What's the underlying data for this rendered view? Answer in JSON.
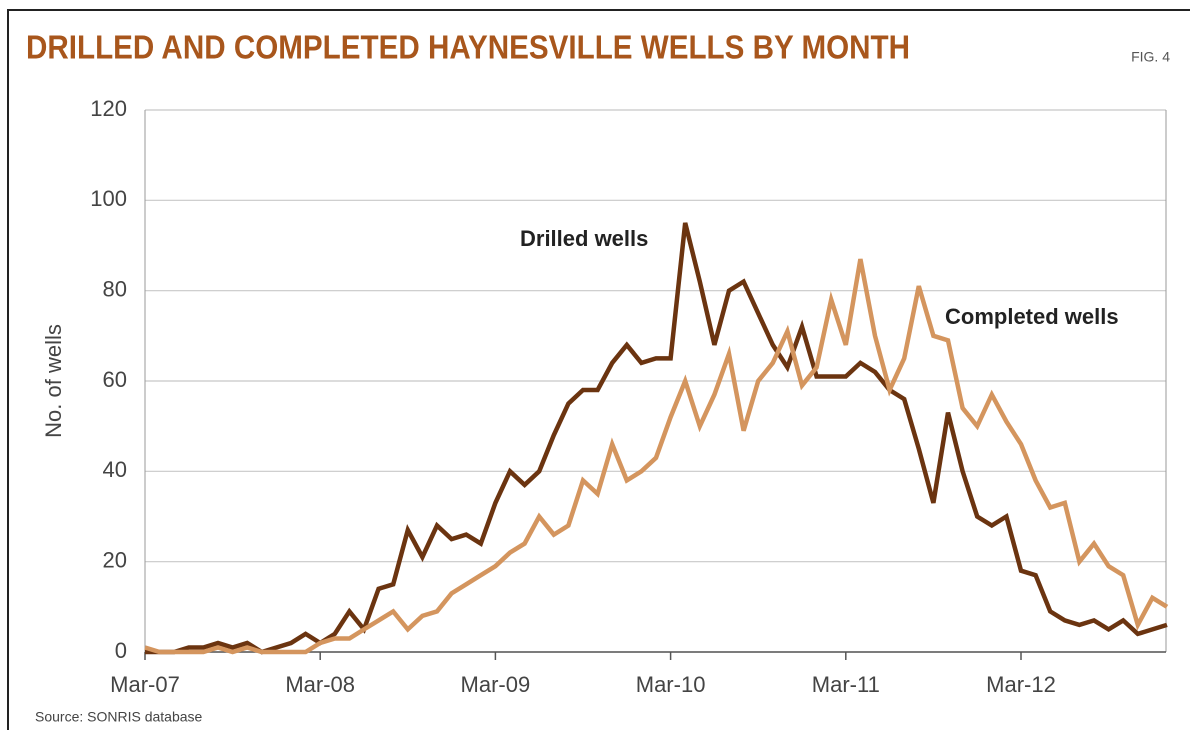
{
  "chart_data": {
    "type": "line",
    "title": "DRILLED AND COMPLETED HAYNESVILLE WELLS BY MONTH",
    "figure_label": "FIG. 4",
    "source": "Source: SONRIS database",
    "y_label": "No. of wells",
    "categories": [
      "Mar-07",
      null,
      null,
      null,
      null,
      null,
      null,
      null,
      null,
      null,
      null,
      null,
      "Mar-08",
      null,
      null,
      null,
      null,
      null,
      null,
      null,
      null,
      null,
      null,
      null,
      "Mar-09",
      null,
      null,
      null,
      null,
      null,
      null,
      null,
      null,
      null,
      null,
      null,
      "Mar-10",
      null,
      null,
      null,
      null,
      null,
      null,
      null,
      null,
      null,
      null,
      null,
      "Mar-11",
      null,
      null,
      null,
      null,
      null,
      null,
      null,
      null,
      null,
      null,
      null,
      "Mar-12",
      null,
      null,
      null,
      null,
      null,
      null,
      null,
      null,
      null,
      null
    ],
    "series": [
      {
        "name": "Drilled wells",
        "color": "#6b3410",
        "values": [
          0,
          0,
          0,
          1,
          1,
          2,
          1,
          2,
          0,
          1,
          2,
          4,
          2,
          4,
          9,
          5,
          14,
          15,
          27,
          21,
          28,
          25,
          26,
          24,
          33,
          40,
          37,
          40,
          48,
          55,
          58,
          58,
          64,
          68,
          64,
          65,
          65,
          95,
          82,
          68,
          80,
          82,
          75,
          68,
          63,
          72,
          61,
          61,
          61,
          64,
          62,
          58,
          56,
          45,
          33,
          53,
          40,
          30,
          28,
          30,
          18,
          17,
          9,
          7,
          6,
          7,
          5,
          7,
          4,
          5,
          6
        ]
      },
      {
        "name": "Completed wells",
        "color": "#d4955e",
        "values": [
          1,
          0,
          0,
          0,
          0,
          1,
          0,
          1,
          0,
          0,
          0,
          0,
          2,
          3,
          3,
          5,
          7,
          9,
          5,
          8,
          9,
          13,
          15,
          17,
          19,
          22,
          24,
          30,
          26,
          28,
          38,
          35,
          46,
          38,
          40,
          43,
          52,
          60,
          50,
          57,
          66,
          49,
          60,
          64,
          71,
          59,
          63,
          78,
          68,
          87,
          70,
          58,
          65,
          81,
          70,
          69,
          54,
          50,
          57,
          51,
          46,
          38,
          32,
          33,
          20,
          24,
          19,
          17,
          6,
          12,
          10
        ]
      }
    ],
    "ylim": [
      0,
      120
    ],
    "yticks": [
      0,
      20,
      40,
      60,
      80,
      100,
      120
    ],
    "grid": true
  }
}
